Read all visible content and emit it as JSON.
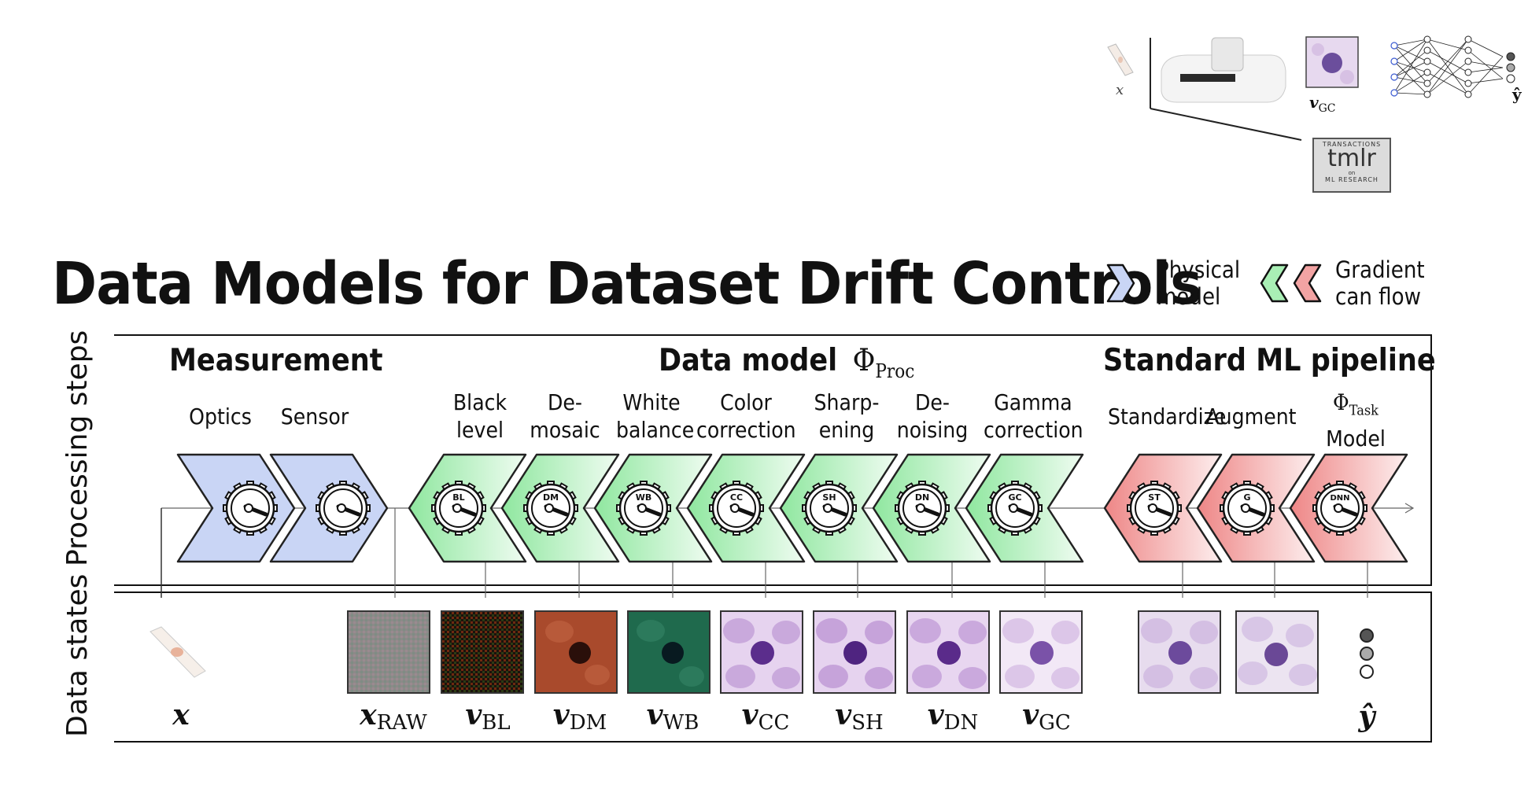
{
  "title": "Data Models for Dataset Drift Controls",
  "legend": {
    "physical_label_line1": "Physical",
    "physical_label_line2": "model",
    "gradient_label_line1": "Gradient",
    "gradient_label_line2": "can flow"
  },
  "side_labels": {
    "processing": "Processing steps",
    "states": "Data states"
  },
  "sections": {
    "measurement": "Measurement",
    "data_model": "Data model",
    "data_model_symbol": "Φ",
    "data_model_sub": "Proc",
    "ml_pipeline": "Standard ML pipeline"
  },
  "steps": {
    "optics": "Optics",
    "sensor": "Sensor",
    "bl_1": "Black",
    "bl_2": "level",
    "dm_1": "De-",
    "dm_2": "mosaic",
    "wb_1": "White",
    "wb_2": "balance",
    "cc_1": "Color",
    "cc_2": "correction",
    "sh_1": "Sharp-",
    "sh_2": "ening",
    "dn_1": "De-",
    "dn_2": "noising",
    "gc_1": "Gamma",
    "gc_2": "correction",
    "standardize": "Standardize",
    "augment": "Augment",
    "task_symbol": "Φ",
    "task_sub": "Task",
    "model": "Model"
  },
  "knob_labels": {
    "bl": "BL",
    "dm": "DM",
    "wb": "WB",
    "cc": "CC",
    "sh": "SH",
    "dn": "DN",
    "gc": "GC",
    "st": "ST",
    "g": "G",
    "dnn": "DNN"
  },
  "states": {
    "x": "x",
    "raw_main": "x",
    "raw_sub": "RAW",
    "bl_main": "v",
    "bl_sub": "BL",
    "dm_main": "v",
    "dm_sub": "DM",
    "wb_main": "v",
    "wb_sub": "WB",
    "cc_main": "v",
    "cc_sub": "CC",
    "sh_main": "v",
    "sh_sub": "SH",
    "dn_main": "v",
    "dn_sub": "DN",
    "gc_main": "v",
    "gc_sub": "GC",
    "yhat": "ŷ"
  },
  "corner": {
    "x": "x",
    "v_main": "v",
    "v_sub": "GC",
    "yhat": "ŷ",
    "logo_top": "TRANSACTIONS",
    "logo_main": "tmlr",
    "logo_on": "on",
    "logo_bottom": "ML RESEARCH"
  },
  "colors": {
    "physical": "#c9d5f5",
    "gradient_green": "#a9efb5",
    "gradient_red": "#f2a3a3",
    "frame": "#111111"
  }
}
